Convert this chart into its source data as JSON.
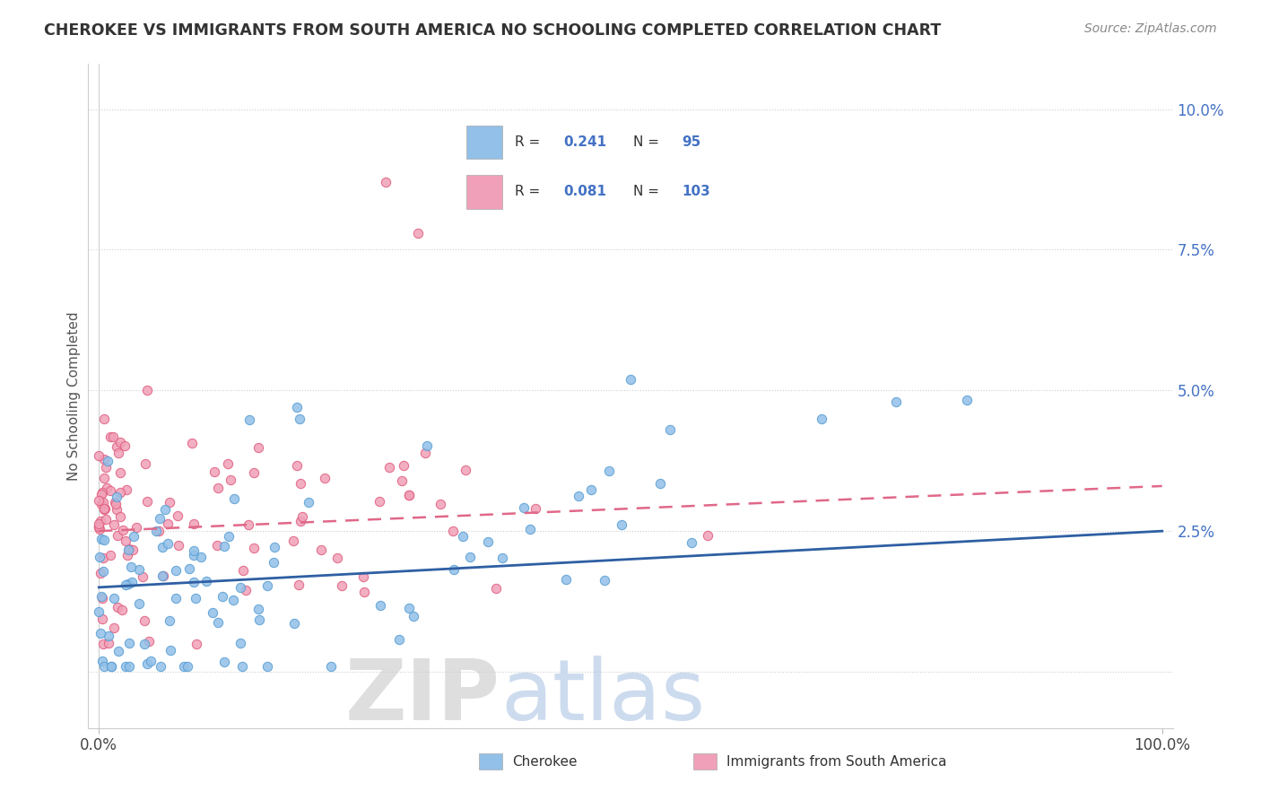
{
  "title": "CHEROKEE VS IMMIGRANTS FROM SOUTH AMERICA NO SCHOOLING COMPLETED CORRELATION CHART",
  "source": "Source: ZipAtlas.com",
  "ylabel": "No Schooling Completed",
  "ytick_vals": [
    0.0,
    0.025,
    0.05,
    0.075,
    0.1
  ],
  "ytick_labels": [
    "",
    "2.5%",
    "5.0%",
    "7.5%",
    "10.0%"
  ],
  "xtick_vals": [
    0.0,
    1.0
  ],
  "xtick_labels": [
    "0.0%",
    "100.0%"
  ],
  "legend_r1": "0.241",
  "legend_n1": "95",
  "legend_r2": "0.081",
  "legend_n2": "103",
  "color_cherokee": "#92c0e8",
  "color_cherokee_edge": "#5a9fd4",
  "color_sa": "#f0a0b8",
  "color_sa_edge": "#e06080",
  "color_text_blue": "#4472c4",
  "color_trendline_blue": "#2e5fa3",
  "color_trendline_pink": "#e06888",
  "color_grid": "#d0d0d0",
  "watermark_zip_color": "#d8d8d8",
  "watermark_atlas_color": "#b8cce8",
  "xlim": [
    -0.01,
    1.01
  ],
  "ylim": [
    -0.01,
    0.108
  ]
}
